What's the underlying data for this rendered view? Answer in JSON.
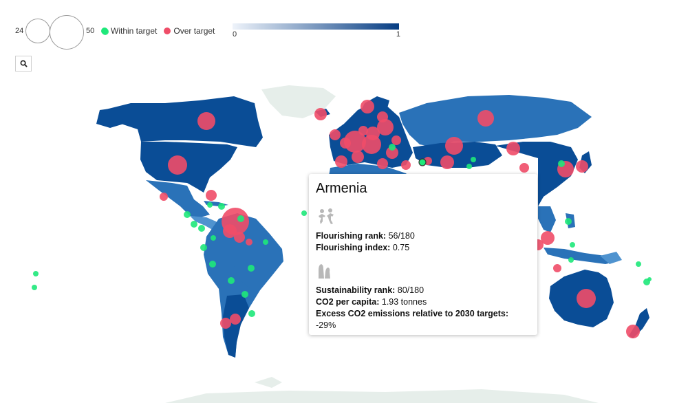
{
  "legend": {
    "size_min_label": "24",
    "size_max_label": "50",
    "categories": [
      {
        "label": "Within target",
        "color": "#1ee87a"
      },
      {
        "label": "Over target",
        "color": "#ef4d68"
      }
    ],
    "color_scale": {
      "min_label": "0",
      "max_label": "1",
      "from": "#eef3fa",
      "to": "#063d83"
    }
  },
  "search": {
    "icon": "search-icon"
  },
  "tooltip": {
    "country": "Armenia",
    "flourishing_icon": "people-icon",
    "flourishing_rank_label": "Flourishing rank:",
    "flourishing_rank_value": "56/180",
    "flourishing_index_label": "Flourishing index:",
    "flourishing_index_value": "0.75",
    "sustainability_icon": "factory-chimney-icon",
    "sustainability_rank_label": "Sustainability rank:",
    "sustainability_rank_value": "80/180",
    "co2_label": "CO2 per capita:",
    "co2_value": "1.93 tonnes",
    "excess_label": "Excess CO2 emissions relative to 2030 targets:",
    "excess_value": "-29%"
  },
  "colors": {
    "land_dark": "#0a4d96",
    "land_mid": "#2a72b8",
    "land_light": "#4f93cf",
    "land_none": "#e6eeea",
    "over": "#ef4d68",
    "within": "#1ee87a"
  }
}
